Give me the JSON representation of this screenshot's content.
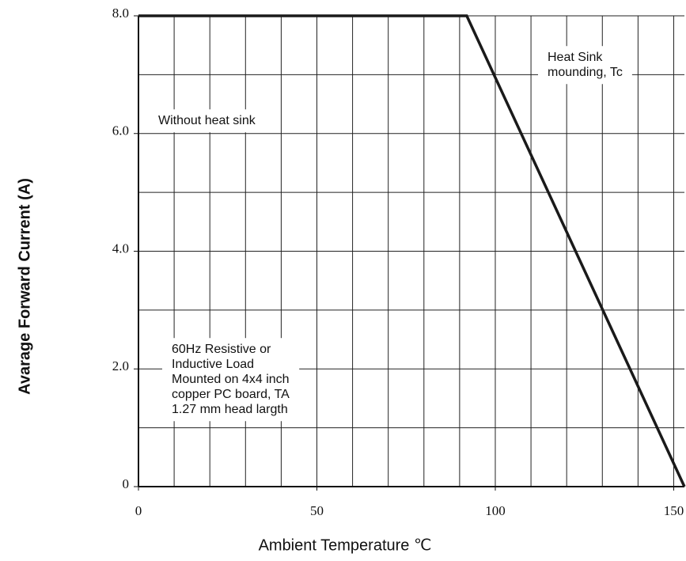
{
  "chart_data": {
    "type": "line",
    "x_label": "Ambient Temperature ℃",
    "y_label": "Avarage Forward Current (A)",
    "x": [
      0,
      92,
      153
    ],
    "series": [
      {
        "color": "#1a1a1a",
        "values": [
          8,
          8,
          0
        ]
      }
    ],
    "xlim": [
      0,
      153
    ],
    "ylim": [
      0,
      8
    ],
    "xticks": [
      0,
      50,
      100,
      150
    ],
    "yticks": [
      {
        "value": 0,
        "label": "0"
      },
      {
        "value": 2,
        "label": "2.0"
      },
      {
        "value": 4,
        "label": "4.0"
      },
      {
        "value": 6,
        "label": "6.0"
      },
      {
        "value": 8,
        "label": "8.0"
      }
    ],
    "xgrid": [
      0,
      10,
      20,
      30,
      40,
      50,
      60,
      70,
      80,
      90,
      100,
      110,
      120,
      130,
      140,
      150
    ],
    "ygrid": [
      0,
      1,
      2,
      3,
      4,
      5,
      6,
      7,
      8
    ],
    "grid": true,
    "annotations": [
      {
        "lines": [
          "Heat Sink",
          "mounding, Tc"
        ]
      },
      {
        "lines": [
          "Without heat sink"
        ]
      },
      {
        "lines": [
          "60Hz Resistive or",
          "Inductive Load",
          "Mounted on 4x4 inch",
          "copper PC board, TA",
          "1.27 mm head largth"
        ]
      }
    ]
  }
}
